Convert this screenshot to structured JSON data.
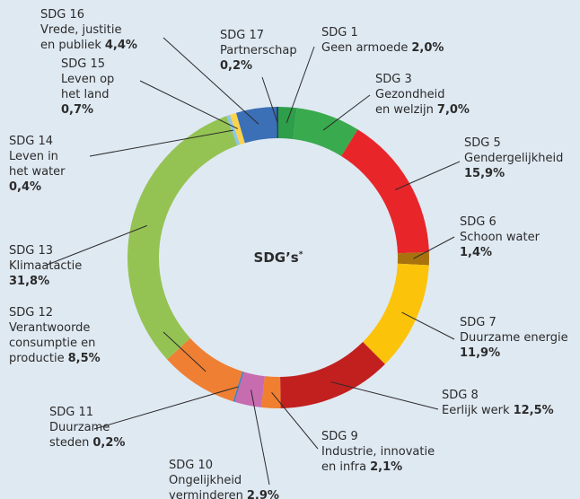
{
  "chart_data": {
    "type": "donut",
    "title": "SDG’s",
    "title_marker": "*",
    "series": [
      {
        "name": "SDG 1",
        "description": [
          "Geen armoede"
        ],
        "color": "#2e9e4a",
        "values": [
          2.0
        ],
        "value_labels": [
          "2,0%"
        ]
      },
      {
        "name": "SDG 3",
        "description": [
          "Gezondheid",
          "en welzijn"
        ],
        "color": "#3aaa4e",
        "values": [
          7.0
        ],
        "value_labels": [
          "7,0%"
        ]
      },
      {
        "name": "SDG 5",
        "description": [
          "Gendergelijkheid"
        ],
        "color": "#e8262a",
        "values": [
          15.9
        ],
        "value_labels": [
          "15,9%"
        ]
      },
      {
        "name": "SDG 6",
        "description": [
          "Schoon water"
        ],
        "color": "#a8720e",
        "values": [
          1.4
        ],
        "value_labels": [
          "1,4%"
        ]
      },
      {
        "name": "SDG 7",
        "description": [
          "Duurzame energie"
        ],
        "color": "#fcc30b",
        "values": [
          11.9
        ],
        "value_labels": [
          "11,9%"
        ]
      },
      {
        "name": "SDG 8",
        "description": [
          "Eerlijk werk"
        ],
        "color": "#c1201f",
        "values": [
          12.5
        ],
        "value_labels": [
          "12,5%"
        ]
      },
      {
        "name": "SDG 9",
        "description": [
          "Industrie, innovatie",
          "en infra"
        ],
        "color": "#f07f2f",
        "values": [
          2.1
        ],
        "value_labels": [
          "2,1%"
        ]
      },
      {
        "name": "SDG 10",
        "description": [
          "Ongelijkheid",
          "verminderen"
        ],
        "color": "#c86cb0",
        "values": [
          2.9
        ],
        "value_labels": [
          "2,9%"
        ]
      },
      {
        "name": "SDG 11",
        "description": [
          "Duurzame",
          "steden"
        ],
        "color": "#4a7fc0",
        "values": [
          0.2
        ],
        "value_labels": [
          "0,2%"
        ]
      },
      {
        "name": "SDG 12",
        "description": [
          "Verantwoorde",
          "consumptie en",
          "productie"
        ],
        "color": "#ef7f33",
        "values": [
          8.5
        ],
        "value_labels": [
          "8,5%"
        ]
      },
      {
        "name": "SDG 13",
        "description": [
          "Klimaatactie"
        ],
        "color": "#94c353",
        "values": [
          31.8
        ],
        "value_labels": [
          "31,8%"
        ]
      },
      {
        "name": "SDG 14",
        "description": [
          "Leven in",
          "het water"
        ],
        "color": "#8ec6e8",
        "values": [
          0.4
        ],
        "value_labels": [
          "0,4%"
        ]
      },
      {
        "name": "SDG 15",
        "description": [
          "Leven op",
          "het land"
        ],
        "color": "#fcd34d",
        "values": [
          0.7
        ],
        "value_labels": [
          "0,7%"
        ]
      },
      {
        "name": "SDG 16",
        "description": [
          "Vrede, justitie",
          "en publiek"
        ],
        "color": "#3b6fb6",
        "values": [
          4.4
        ],
        "value_labels": [
          "4,4%"
        ]
      },
      {
        "name": "SDG 17",
        "description": [
          "Partnerschap"
        ],
        "color": "#1f3f6e",
        "values": [
          0.2
        ],
        "value_labels": [
          "0,2%"
        ]
      }
    ]
  }
}
